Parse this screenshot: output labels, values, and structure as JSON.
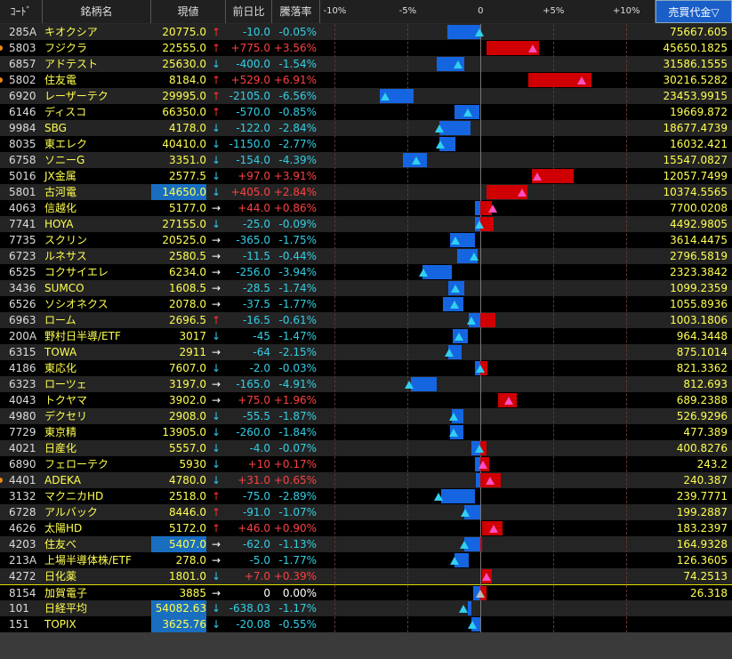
{
  "header": {
    "code": "ｺｰﾄﾞ",
    "name": "銘柄名",
    "price": "現値",
    "change": "前日比",
    "pct": "騰落率",
    "volume": "売買代金",
    "sort_icon": "▽",
    "scale_lim": [
      -11,
      12
    ],
    "scale_ticks": [
      {
        "value": -10,
        "label": "-10%"
      },
      {
        "value": -5,
        "label": "-5%"
      },
      0,
      {
        "value": 5,
        "label": "+5%"
      },
      {
        "value": 10,
        "label": "+10%"
      }
    ]
  },
  "rows": [
    {
      "code": "285A",
      "name": "キオクシア",
      "price": "20775.0",
      "arrow": "↑",
      "change": "-10.0",
      "pct": "-0.05%",
      "volume": "75667.605",
      "range": [
        -2.3,
        0.0
      ]
    },
    {
      "code": "5803",
      "name": "フジクラ",
      "price": "22555.0",
      "arrow": "↑",
      "change": "+775.0",
      "pct": "+3.56%",
      "volume": "45650.1825",
      "range": [
        0.4,
        4.0
      ],
      "alert": true
    },
    {
      "code": "6857",
      "name": "アドテスト",
      "price": "25630.0",
      "arrow": "↓",
      "change": "-400.0",
      "pct": "-1.54%",
      "volume": "31586.1555",
      "range": [
        -3.0,
        -1.1
      ]
    },
    {
      "code": "5802",
      "name": "住友電",
      "price": "8184.0",
      "arrow": "↑",
      "change": "+529.0",
      "pct": "+6.91%",
      "volume": "30216.5282",
      "range": [
        3.3,
        7.6
      ],
      "alert": true
    },
    {
      "code": "6920",
      "name": "レーザーテク",
      "price": "29995.0",
      "arrow": "↑",
      "change": "-2105.0",
      "pct": "-6.56%",
      "volume": "23453.9915",
      "range": [
        -6.9,
        -4.6
      ]
    },
    {
      "code": "6146",
      "name": "ディスコ",
      "price": "66350.0",
      "arrow": "↑",
      "change": "-570.0",
      "pct": "-0.85%",
      "volume": "19669.872",
      "range": [
        -1.8,
        -0.1
      ]
    },
    {
      "code": "9984",
      "name": "SBG",
      "price": "4178.0",
      "arrow": "↓",
      "change": "-122.0",
      "pct": "-2.84%",
      "volume": "18677.4739",
      "range": [
        -2.8,
        -0.7
      ]
    },
    {
      "code": "8035",
      "name": "東エレク",
      "price": "40410.0",
      "arrow": "↓",
      "change": "-1150.0",
      "pct": "-2.77%",
      "volume": "16032.421",
      "range": [
        -2.8,
        -1.7
      ]
    },
    {
      "code": "6758",
      "name": "ソニーG",
      "price": "3351.0",
      "arrow": "↓",
      "change": "-154.0",
      "pct": "-4.39%",
      "volume": "15547.0827",
      "range": [
        -5.3,
        -3.7
      ]
    },
    {
      "code": "5016",
      "name": "JX金属",
      "price": "2577.5",
      "arrow": "↓",
      "change": "+97.0",
      "pct": "+3.91%",
      "volume": "12057.7499",
      "range": [
        3.5,
        6.4
      ]
    },
    {
      "code": "5801",
      "name": "古河電",
      "price": "14650.0",
      "arrow": "↓",
      "change": "+405.0",
      "pct": "+2.84%",
      "volume": "10374.5565",
      "range": [
        0.4,
        3.2
      ],
      "highlight": true
    },
    {
      "code": "4063",
      "name": "信越化",
      "price": "5177.0",
      "arrow": "→",
      "change": "+44.0",
      "pct": "+0.86%",
      "volume": "7700.0208",
      "range": [
        -0.4,
        0.8
      ]
    },
    {
      "code": "7741",
      "name": "HOYA",
      "price": "27155.0",
      "arrow": "↓",
      "change": "-25.0",
      "pct": "-0.09%",
      "volume": "4492.9805",
      "range": [
        -0.4,
        0.9
      ]
    },
    {
      "code": "7735",
      "name": "スクリン",
      "price": "20525.0",
      "arrow": "→",
      "change": "-365.0",
      "pct": "-1.75%",
      "volume": "3614.4475",
      "range": [
        -2.1,
        -0.4
      ]
    },
    {
      "code": "6723",
      "name": "ルネサス",
      "price": "2580.5",
      "arrow": "→",
      "change": "-11.5",
      "pct": "-0.44%",
      "volume": "2796.5819",
      "range": [
        -1.6,
        -0.2
      ]
    },
    {
      "code": "6525",
      "name": "コクサイエレ",
      "price": "6234.0",
      "arrow": "→",
      "change": "-256.0",
      "pct": "-3.94%",
      "volume": "2323.3842",
      "range": [
        -4.0,
        -2.0
      ]
    },
    {
      "code": "3436",
      "name": "SUMCO",
      "price": "1608.5",
      "arrow": "→",
      "change": "-28.5",
      "pct": "-1.74%",
      "volume": "1099.2359",
      "range": [
        -2.2,
        -1.1
      ]
    },
    {
      "code": "6526",
      "name": "ソシオネクス",
      "price": "2078.0",
      "arrow": "→",
      "change": "-37.5",
      "pct": "-1.77%",
      "volume": "1055.8936",
      "range": [
        -2.6,
        -1.2
      ]
    },
    {
      "code": "6963",
      "name": "ローム",
      "price": "2696.5",
      "arrow": "↑",
      "change": "-16.5",
      "pct": "-0.61%",
      "volume": "1003.1806",
      "range": [
        -0.8,
        1.0
      ]
    },
    {
      "code": "200A",
      "name": "野村日半導/ETF",
      "price": "3017",
      "arrow": "↓",
      "change": "-45",
      "pct": "-1.47%",
      "volume": "964.3448",
      "range": [
        -1.9,
        -0.9
      ]
    },
    {
      "code": "6315",
      "name": "TOWA",
      "price": "2911",
      "arrow": "→",
      "change": "-64",
      "pct": "-2.15%",
      "volume": "875.1014",
      "range": [
        -2.2,
        -1.3
      ]
    },
    {
      "code": "4186",
      "name": "東応化",
      "price": "7607.0",
      "arrow": "↓",
      "change": "-2.0",
      "pct": "-0.03%",
      "volume": "821.3362",
      "range": [
        -0.4,
        0.5
      ]
    },
    {
      "code": "6323",
      "name": "ローツェ",
      "price": "3197.0",
      "arrow": "→",
      "change": "-165.0",
      "pct": "-4.91%",
      "volume": "812.693",
      "range": [
        -4.8,
        -3.0
      ]
    },
    {
      "code": "4043",
      "name": "トクヤマ",
      "price": "3902.0",
      "arrow": "→",
      "change": "+75.0",
      "pct": "+1.96%",
      "volume": "689.2388",
      "range": [
        1.2,
        2.5
      ]
    },
    {
      "code": "4980",
      "name": "デクセリ",
      "price": "2908.0",
      "arrow": "↓",
      "change": "-55.5",
      "pct": "-1.87%",
      "volume": "526.9296",
      "range": [
        -2.0,
        -1.2
      ]
    },
    {
      "code": "7729",
      "name": "東京精",
      "price": "13905.0",
      "arrow": "↓",
      "change": "-260.0",
      "pct": "-1.84%",
      "volume": "477.389",
      "range": [
        -2.1,
        -1.2
      ]
    },
    {
      "code": "4021",
      "name": "日産化",
      "price": "5557.0",
      "arrow": "↓",
      "change": "-4.0",
      "pct": "-0.07%",
      "volume": "400.8276",
      "range": [
        -0.6,
        0.4
      ]
    },
    {
      "code": "6890",
      "name": "フェローテク",
      "price": "5930",
      "arrow": "↓",
      "change": "+10",
      "pct": "+0.17%",
      "volume": "243.2",
      "range": [
        -0.4,
        0.6
      ]
    },
    {
      "code": "4401",
      "name": "ADEKA",
      "price": "4780.0",
      "arrow": "↓",
      "change": "+31.0",
      "pct": "+0.65%",
      "volume": "240.387",
      "range": [
        -0.3,
        1.4
      ],
      "alert": true
    },
    {
      "code": "3132",
      "name": "マクニカHD",
      "price": "2518.0",
      "arrow": "↑",
      "change": "-75.0",
      "pct": "-2.89%",
      "volume": "239.7771",
      "range": [
        -2.7,
        -0.4
      ]
    },
    {
      "code": "6728",
      "name": "アルバック",
      "price": "8446.0",
      "arrow": "↑",
      "change": "-91.0",
      "pct": "-1.07%",
      "volume": "199.2887",
      "range": [
        -1.1,
        0.0
      ]
    },
    {
      "code": "4626",
      "name": "太陽HD",
      "price": "5172.0",
      "arrow": "↑",
      "change": "+46.0",
      "pct": "+0.90%",
      "volume": "183.2397",
      "range": [
        0.1,
        1.5
      ]
    },
    {
      "code": "4203",
      "name": "住友べ",
      "price": "5407.0",
      "arrow": "→",
      "change": "-62.0",
      "pct": "-1.13%",
      "volume": "164.9328",
      "range": [
        -1.1,
        0.1
      ],
      "highlight": true
    },
    {
      "code": "213A",
      "name": "上場半導体株/ETF",
      "price": "278.0",
      "arrow": "→",
      "change": "-5.0",
      "pct": "-1.77%",
      "volume": "126.3605",
      "range": [
        -1.8,
        -0.8
      ]
    },
    {
      "code": "4272",
      "name": "日化薬",
      "price": "1801.0",
      "arrow": "↓",
      "change": "+7.0",
      "pct": "+0.39%",
      "volume": "74.2513",
      "range": [
        0.1,
        0.8
      ]
    },
    {
      "code": "8154",
      "name": "加賀電子",
      "price": "3885",
      "arrow": "→",
      "change": "0",
      "pct": "0.00%",
      "volume": "26.318",
      "range": [
        -0.5,
        0.4
      ],
      "separator": true
    },
    {
      "code": "101",
      "name": "日経平均",
      "price": "54082.63",
      "arrow": "↓",
      "change": "-638.03",
      "pct": "-1.17%",
      "range": [
        -0.9,
        -0.6
      ],
      "highlight": true
    },
    {
      "code": "151",
      "name": "TOPIX",
      "price": "3625.76",
      "arrow": "↓",
      "change": "-20.08",
      "pct": "-0.55%",
      "range": [
        -0.6,
        0.0
      ],
      "highlight": true
    }
  ]
}
